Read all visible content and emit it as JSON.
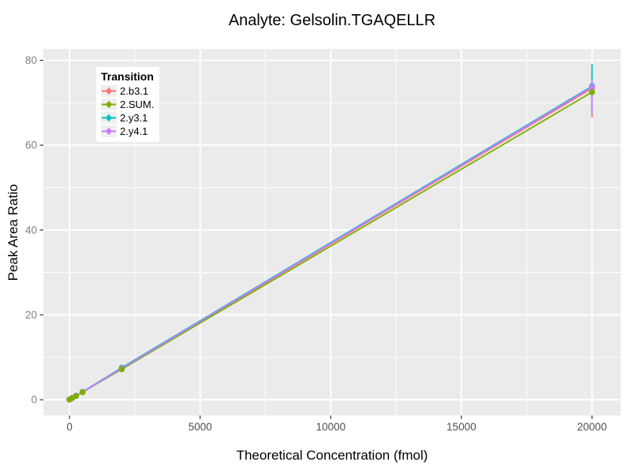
{
  "chart_data": {
    "type": "line",
    "subtype": "calibration curve with points and vertical error bars (ggplot2 style)",
    "title": "Analyte: Gelsolin.TGAQELLR",
    "xlabel": "Theoretical Concentration (fmol)",
    "ylabel": "Peak Area Ratio",
    "xlim": [
      -1000,
      21100
    ],
    "ylim": [
      -3.7,
      82.7
    ],
    "xticks": [
      0,
      5000,
      10000,
      15000,
      20000
    ],
    "xtick_labels": [
      "0",
      "5000",
      "10000",
      "15000",
      "20000"
    ],
    "yticks": [
      0,
      20,
      40,
      60,
      80
    ],
    "ytick_labels": [
      "0",
      "20",
      "40",
      "60",
      "80"
    ],
    "minor_xticks": [
      2500,
      7500,
      12500,
      17500
    ],
    "minor_yticks": [
      10,
      30,
      50,
      70
    ],
    "grid": "major and minor white gridlines on grey panel",
    "legend": {
      "title": "Transition",
      "position": "inside top-left",
      "entries": [
        "2.b3.1",
        "2.SUM.",
        "2.y3.1",
        "2.y4.1"
      ]
    },
    "series": [
      {
        "name": "2.b3.1",
        "color": "#F8766D",
        "x": [
          0,
          100,
          250,
          500,
          2000,
          20000
        ],
        "y": [
          0.05,
          0.4,
          0.9,
          1.8,
          7.35,
          73.4
        ],
        "ylo": [
          0.05,
          0.4,
          0.9,
          1.8,
          7.1,
          66.5
        ],
        "yhi": [
          0.05,
          0.4,
          0.9,
          1.8,
          7.6,
          74.6
        ]
      },
      {
        "name": "2.SUM.",
        "color": "#7CAE00",
        "x": [
          0,
          100,
          250,
          500,
          2000,
          20000
        ],
        "y": [
          0.05,
          0.4,
          0.9,
          1.8,
          7.2,
          72.5
        ],
        "ylo": [
          0.05,
          0.4,
          0.9,
          1.8,
          7.0,
          71.9
        ],
        "yhi": [
          0.05,
          0.4,
          0.9,
          1.8,
          7.4,
          73.1
        ]
      },
      {
        "name": "2.y3.1",
        "color": "#00BFC4",
        "x": [
          0,
          100,
          250,
          500,
          2000,
          20000
        ],
        "y": [
          0.05,
          0.4,
          0.95,
          1.85,
          7.55,
          73.9
        ],
        "ylo": [
          0.05,
          0.4,
          0.95,
          1.85,
          7.3,
          68.7
        ],
        "yhi": [
          0.05,
          0.4,
          0.95,
          1.85,
          8.1,
          79.1
        ]
      },
      {
        "name": "2.y4.1",
        "color": "#C77CFF",
        "x": [
          0,
          100,
          250,
          500,
          2000,
          20000
        ],
        "y": [
          0.05,
          0.4,
          0.92,
          1.82,
          7.4,
          73.7
        ],
        "ylo": [
          0.05,
          0.4,
          0.92,
          1.82,
          7.0,
          67.4
        ],
        "yhi": [
          0.05,
          0.4,
          0.92,
          1.82,
          7.7,
          75.4
        ]
      }
    ],
    "line_order": [
      0,
      1,
      2,
      3
    ],
    "error_order": [
      0,
      1,
      2,
      3
    ],
    "point_order": [
      0,
      2,
      3,
      1
    ],
    "colors": {
      "panel_bg": "#EBEBEB",
      "grid": "#FFFFFF",
      "tick_marks": "#333333",
      "x_tick_text": "#4D4D4D",
      "y_tick_text": "#7F7F7F",
      "legend_key_bg": "#EFEFEF",
      "background": "#FFFFFF"
    }
  }
}
